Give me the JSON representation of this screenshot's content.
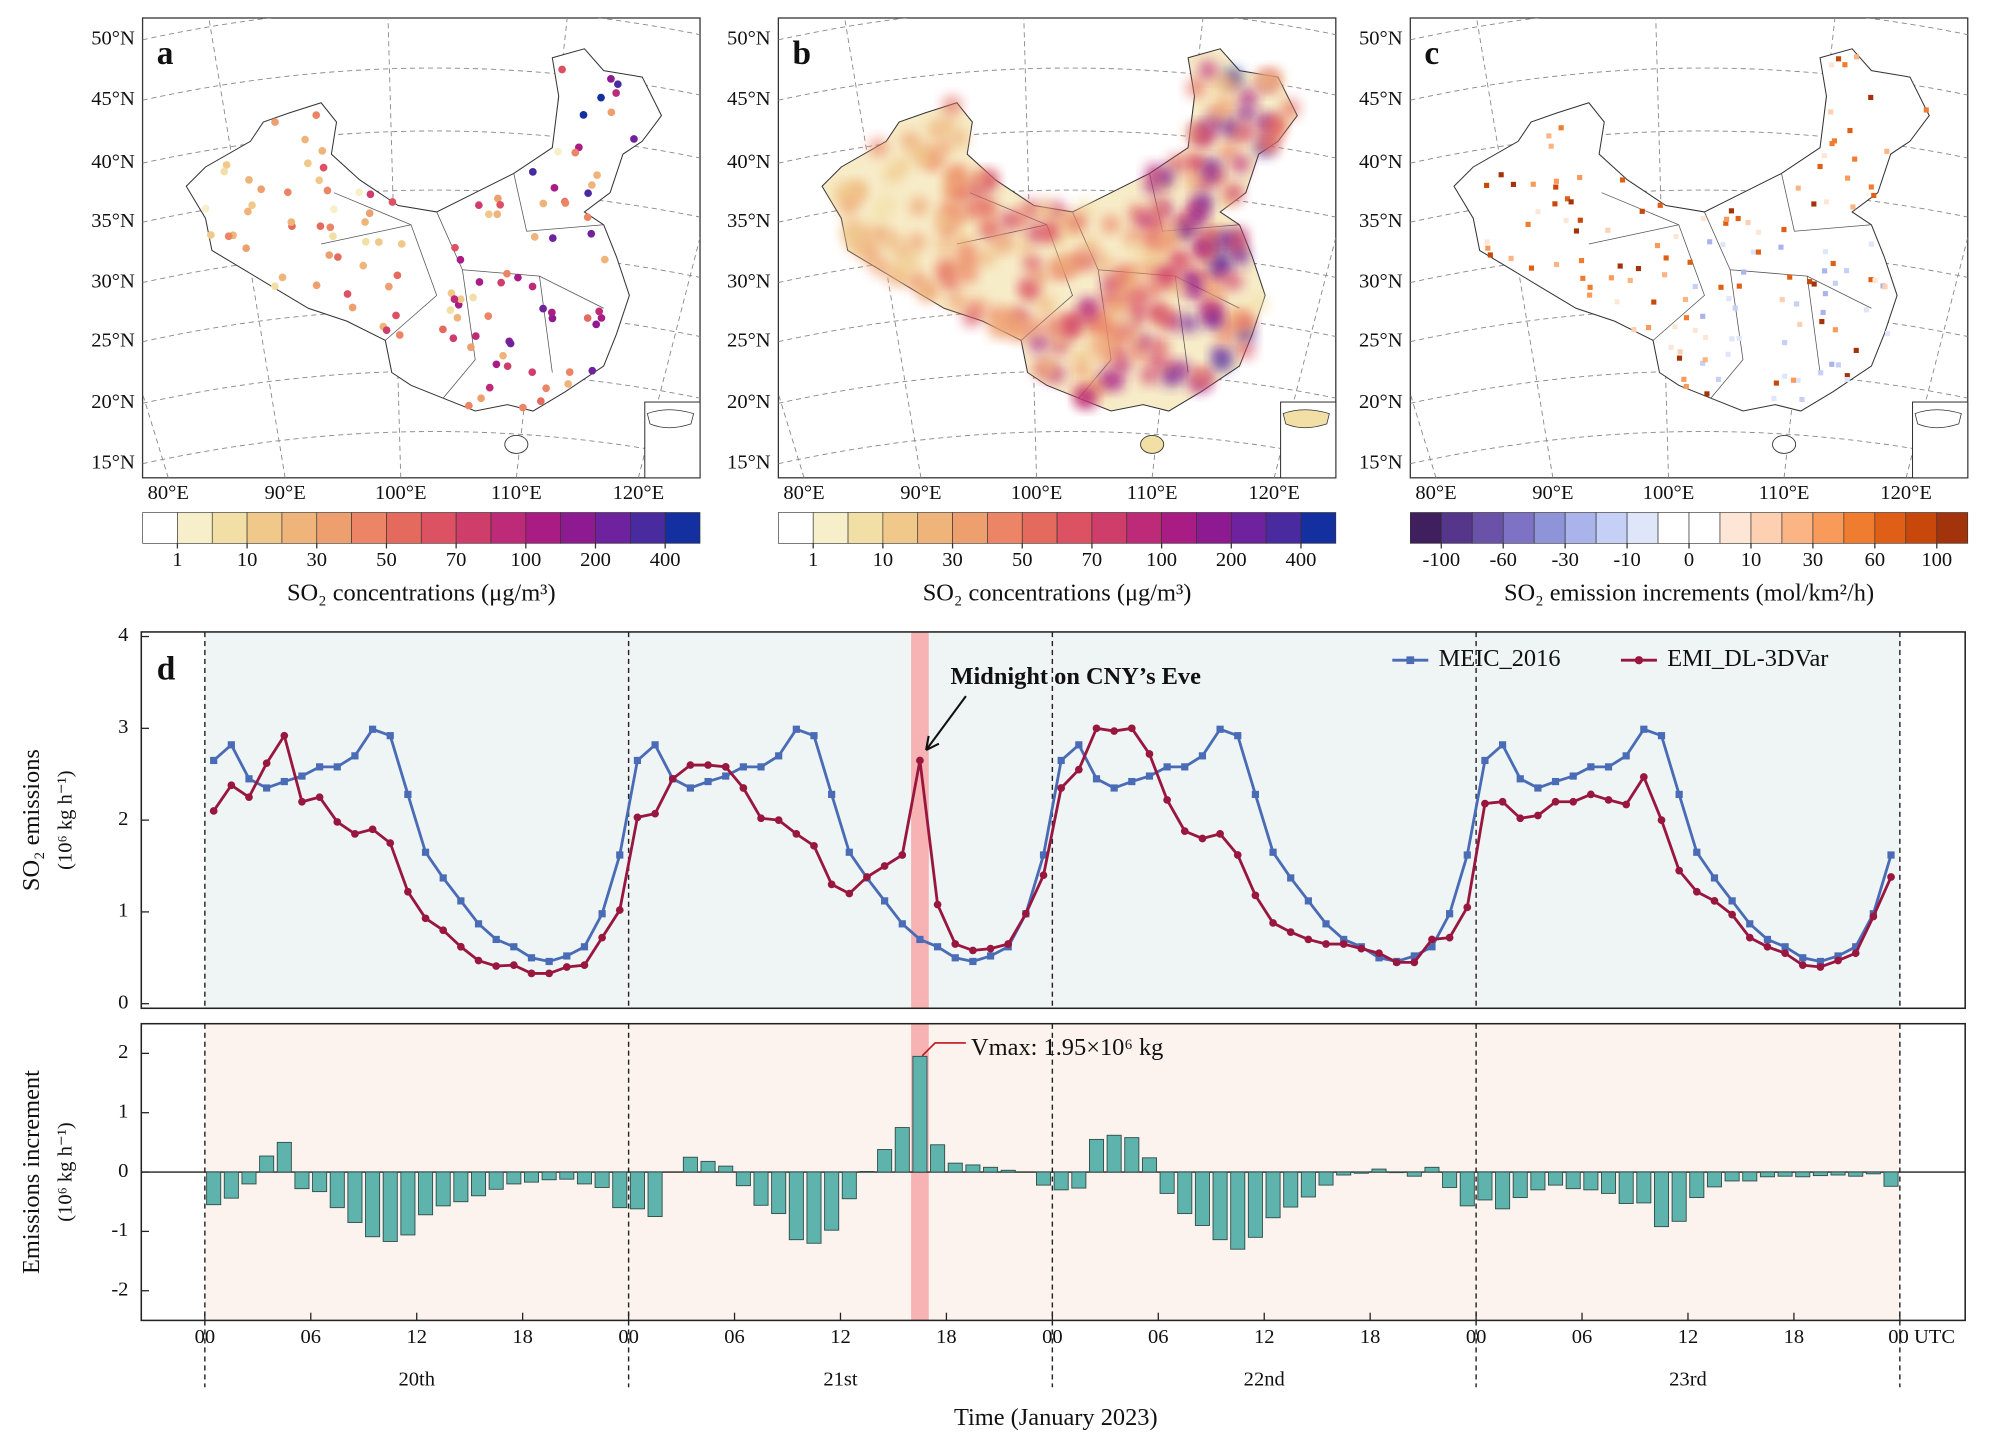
{
  "maps": [
    {
      "letter": "a",
      "lat_labels": [
        "50°N",
        "45°N",
        "40°N",
        "35°N",
        "30°N",
        "25°N",
        "20°N",
        "15°N"
      ],
      "lon_labels": [
        "80°E",
        "90°E",
        "100°E",
        "110°E",
        "120°E"
      ],
      "colorbar": {
        "title": "SO₂ concentrations (μg/m³)",
        "colors": [
          "#ffffff",
          "#f6efca",
          "#f2dfa6",
          "#f0c98a",
          "#eeb47a",
          "#ee9f6e",
          "#ec8565",
          "#e46a5e",
          "#dc5263",
          "#cf3d6b",
          "#bd2a77",
          "#a81c84",
          "#8d1a91",
          "#6f229e",
          "#4a2a9f",
          "#1430a0"
        ],
        "ticks": [
          1,
          10,
          30,
          50,
          70,
          100,
          200,
          400
        ]
      }
    },
    {
      "letter": "b",
      "lat_labels": [
        "50°N",
        "45°N",
        "40°N",
        "35°N",
        "30°N",
        "25°N",
        "20°N",
        "15°N"
      ],
      "lon_labels": [
        "80°E",
        "90°E",
        "100°E",
        "110°E",
        "120°E"
      ],
      "colorbar": {
        "title": "SO₂ concentrations (μg/m³)",
        "colors": [
          "#ffffff",
          "#f6efca",
          "#f2dfa6",
          "#f0c98a",
          "#eeb47a",
          "#ee9f6e",
          "#ec8565",
          "#e46a5e",
          "#dc5263",
          "#cf3d6b",
          "#bd2a77",
          "#a81c84",
          "#8d1a91",
          "#6f229e",
          "#4a2a9f",
          "#1430a0"
        ],
        "ticks": [
          1,
          10,
          30,
          50,
          70,
          100,
          200,
          400
        ]
      }
    },
    {
      "letter": "c",
      "lat_labels": [
        "50°N",
        "45°N",
        "40°N",
        "35°N",
        "30°N",
        "25°N",
        "20°N",
        "15°N"
      ],
      "lon_labels": [
        "80°E",
        "90°E",
        "100°E",
        "110°E",
        "120°E"
      ],
      "colorbar": {
        "title": "SO₂ emission increments (mol/km²/h)",
        "colors": [
          "#3f1f5e",
          "#55368a",
          "#6a52a8",
          "#7d72c4",
          "#8f93d8",
          "#aab4ea",
          "#c6cff5",
          "#e0e6fa",
          "#ffffff",
          "#ffffff",
          "#fde6d6",
          "#fcd0b0",
          "#fbb585",
          "#f89a5a",
          "#f07c30",
          "#e05f16",
          "#c8480c",
          "#a3330a"
        ],
        "ticks": [
          -100,
          -60,
          -30,
          -10,
          0,
          10,
          30,
          60,
          100
        ]
      }
    }
  ],
  "chart_data": [
    {
      "type": "line",
      "letter": "d",
      "ylabel": "SO₂ emissions",
      "yunit": "(10⁶ kg h⁻¹)",
      "x": [
        0.5,
        1.5,
        2.5,
        3.5,
        4.5,
        5.5,
        6.5,
        7.5,
        8.5,
        9.5,
        10.5,
        11.5,
        12.5,
        13.5,
        14.5,
        15.5,
        16.5,
        17.5,
        18.5,
        19.5,
        20.5,
        21.5,
        22.5,
        23.5,
        24.5,
        25.5,
        26.5,
        27.5,
        28.5,
        29.5,
        30.5,
        31.5,
        32.5,
        33.5,
        34.5,
        35.5,
        36.5,
        37.5,
        38.5,
        39.5,
        40.5,
        41.5,
        42.5,
        43.5,
        44.5,
        45.5,
        46.5,
        47.5,
        48.5,
        49.5,
        50.5,
        51.5,
        52.5,
        53.5,
        54.5,
        55.5,
        56.5,
        57.5,
        58.5,
        59.5,
        60.5,
        61.5,
        62.5,
        63.5,
        64.5,
        65.5,
        66.5,
        67.5,
        68.5,
        69.5,
        70.5,
        71.5,
        72.5,
        73.5,
        74.5,
        75.5,
        76.5,
        77.5,
        78.5,
        79.5,
        80.5,
        81.5,
        82.5,
        83.5,
        84.5,
        85.5,
        86.5,
        87.5,
        88.5,
        89.5,
        90.5,
        91.5,
        92.5,
        93.5,
        94.5,
        95.5
      ],
      "series": [
        {
          "name": "MEIC_2016",
          "color": "#4a6bb5",
          "marker": "square",
          "values": [
            2.65,
            2.82,
            2.45,
            2.35,
            2.42,
            2.48,
            2.58,
            2.58,
            2.7,
            2.99,
            2.92,
            2.28,
            1.65,
            1.37,
            1.12,
            0.87,
            0.7,
            0.62,
            0.5,
            0.46,
            0.52,
            0.62,
            0.98,
            1.62,
            2.65,
            2.82,
            2.45,
            2.35,
            2.42,
            2.48,
            2.58,
            2.58,
            2.7,
            2.99,
            2.92,
            2.28,
            1.65,
            1.37,
            1.12,
            0.87,
            0.7,
            0.62,
            0.5,
            0.46,
            0.52,
            0.62,
            0.98,
            1.62,
            2.65,
            2.82,
            2.45,
            2.35,
            2.42,
            2.48,
            2.58,
            2.58,
            2.7,
            2.99,
            2.92,
            2.28,
            1.65,
            1.37,
            1.12,
            0.87,
            0.7,
            0.62,
            0.5,
            0.46,
            0.52,
            0.62,
            0.98,
            1.62,
            2.65,
            2.82,
            2.45,
            2.35,
            2.42,
            2.48,
            2.58,
            2.58,
            2.7,
            2.99,
            2.92,
            2.28,
            1.65,
            1.37,
            1.12,
            0.87,
            0.7,
            0.62,
            0.5,
            0.46,
            0.52,
            0.62,
            0.98,
            1.62
          ]
        },
        {
          "name": "EMI_DL-3DVar",
          "color": "#99163f",
          "marker": "circle",
          "values": [
            2.1,
            2.38,
            2.25,
            2.62,
            2.92,
            2.2,
            2.25,
            1.98,
            1.85,
            1.9,
            1.75,
            1.22,
            0.93,
            0.8,
            0.62,
            0.47,
            0.41,
            0.42,
            0.33,
            0.33,
            0.4,
            0.42,
            0.72,
            1.02,
            2.03,
            2.07,
            2.45,
            2.6,
            2.6,
            2.58,
            2.35,
            2.02,
            2.0,
            1.85,
            1.72,
            1.3,
            1.2,
            1.38,
            1.5,
            1.62,
            2.65,
            1.08,
            0.65,
            0.58,
            0.6,
            0.65,
            0.98,
            1.4,
            2.35,
            2.55,
            3.0,
            2.97,
            3.0,
            2.72,
            2.22,
            1.88,
            1.8,
            1.85,
            1.62,
            1.18,
            0.88,
            0.78,
            0.7,
            0.65,
            0.65,
            0.6,
            0.55,
            0.45,
            0.45,
            0.7,
            0.72,
            1.05,
            2.18,
            2.2,
            2.02,
            2.05,
            2.2,
            2.2,
            2.28,
            2.22,
            2.17,
            2.47,
            2.0,
            1.45,
            1.22,
            1.12,
            0.97,
            0.72,
            0.62,
            0.55,
            0.42,
            0.4,
            0.47,
            0.55,
            0.95,
            1.38
          ]
        }
      ],
      "xlim": [
        -3.6,
        99.7
      ],
      "ylim": [
        -0.05,
        4.05
      ],
      "yticks": [
        0,
        1,
        2,
        3,
        4
      ],
      "shade": [
        0,
        96
      ],
      "shade_color": "#eef5f4",
      "highlight": [
        40,
        41
      ],
      "highlight_color": "#f7b3b3",
      "dividers": [
        0,
        24,
        48,
        72,
        96
      ],
      "legend": "upper right",
      "annotation": "Midnight on CNY’s Eve"
    },
    {
      "type": "bar",
      "ylabel": "Emissions increment",
      "yunit": "(10⁶ kg h⁻¹)",
      "color": "#5fb3ad",
      "x": [
        0.5,
        1.5,
        2.5,
        3.5,
        4.5,
        5.5,
        6.5,
        7.5,
        8.5,
        9.5,
        10.5,
        11.5,
        12.5,
        13.5,
        14.5,
        15.5,
        16.5,
        17.5,
        18.5,
        19.5,
        20.5,
        21.5,
        22.5,
        23.5,
        24.5,
        25.5,
        26.5,
        27.5,
        28.5,
        29.5,
        30.5,
        31.5,
        32.5,
        33.5,
        34.5,
        35.5,
        36.5,
        37.5,
        38.5,
        39.5,
        40.5,
        41.5,
        42.5,
        43.5,
        44.5,
        45.5,
        46.5,
        47.5,
        48.5,
        49.5,
        50.5,
        51.5,
        52.5,
        53.5,
        54.5,
        55.5,
        56.5,
        57.5,
        58.5,
        59.5,
        60.5,
        61.5,
        62.5,
        63.5,
        64.5,
        65.5,
        66.5,
        67.5,
        68.5,
        69.5,
        70.5,
        71.5,
        72.5,
        73.5,
        74.5,
        75.5,
        76.5,
        77.5,
        78.5,
        79.5,
        80.5,
        81.5,
        82.5,
        83.5,
        84.5,
        85.5,
        86.5,
        87.5,
        88.5,
        89.5,
        90.5,
        91.5,
        92.5,
        93.5,
        94.5,
        95.5
      ],
      "values": [
        -0.55,
        -0.44,
        -0.2,
        0.27,
        0.5,
        -0.28,
        -0.33,
        -0.6,
        -0.85,
        -1.09,
        -1.17,
        -1.06,
        -0.72,
        -0.57,
        -0.5,
        -0.4,
        -0.29,
        -0.2,
        -0.17,
        -0.13,
        -0.12,
        -0.2,
        -0.26,
        -0.6,
        -0.62,
        -0.75,
        0.0,
        0.25,
        0.18,
        0.1,
        -0.23,
        -0.56,
        -0.7,
        -1.14,
        -1.2,
        -0.98,
        -0.45,
        0.01,
        0.38,
        0.75,
        1.95,
        0.46,
        0.15,
        0.12,
        0.08,
        0.03,
        0.0,
        -0.22,
        -0.3,
        -0.27,
        0.55,
        0.62,
        0.58,
        0.24,
        -0.36,
        -0.7,
        -0.9,
        -1.14,
        -1.3,
        -1.1,
        -0.77,
        -0.59,
        -0.42,
        -0.22,
        -0.05,
        -0.02,
        0.05,
        -0.01,
        -0.07,
        0.08,
        -0.26,
        -0.57,
        -0.47,
        -0.62,
        -0.43,
        -0.3,
        -0.22,
        -0.28,
        -0.3,
        -0.36,
        -0.53,
        -0.52,
        -0.92,
        -0.83,
        -0.43,
        -0.25,
        -0.15,
        -0.15,
        -0.08,
        -0.07,
        -0.08,
        -0.06,
        -0.05,
        -0.07,
        -0.03,
        -0.24
      ],
      "xlim": [
        -3.6,
        99.7
      ],
      "ylim": [
        -2.5,
        2.5
      ],
      "yticks": [
        -2,
        -1,
        0,
        1,
        2
      ],
      "xticks": [
        {
          "value": 0,
          "label": "00"
        },
        {
          "value": 6,
          "label": "06"
        },
        12,
        18,
        {
          "value": 24,
          "label": "00"
        },
        {
          "value": 30,
          "label": "06"
        },
        {
          "value": 36,
          "label": "12"
        },
        {
          "value": 42,
          "label": "18"
        },
        {
          "value": 48,
          "label": "00"
        },
        {
          "value": 54,
          "label": "06"
        },
        {
          "value": 60,
          "label": "12"
        },
        {
          "value": 66,
          "label": "18"
        },
        {
          "value": 72,
          "label": "00"
        },
        {
          "value": 78,
          "label": "06"
        },
        {
          "value": 84,
          "label": "12"
        },
        {
          "value": 90,
          "label": "18"
        },
        {
          "value": 96,
          "label": "00 UTC"
        }
      ],
      "day_labels": [
        {
          "value": 12,
          "label": "20th"
        },
        {
          "value": 36,
          "label": "21st"
        },
        {
          "value": 60,
          "label": "22nd"
        },
        {
          "value": 84,
          "label": "23rd"
        }
      ],
      "xlabel": "Time (January 2023)",
      "shade": [
        0,
        96
      ],
      "shade_color": "#fdf3ee",
      "highlight": [
        40,
        41
      ],
      "highlight_color": "#f7b3b3",
      "dividers": [
        0,
        24,
        48,
        72,
        96
      ],
      "annotation": "Vmax: 1.95×10⁶ kg"
    }
  ]
}
